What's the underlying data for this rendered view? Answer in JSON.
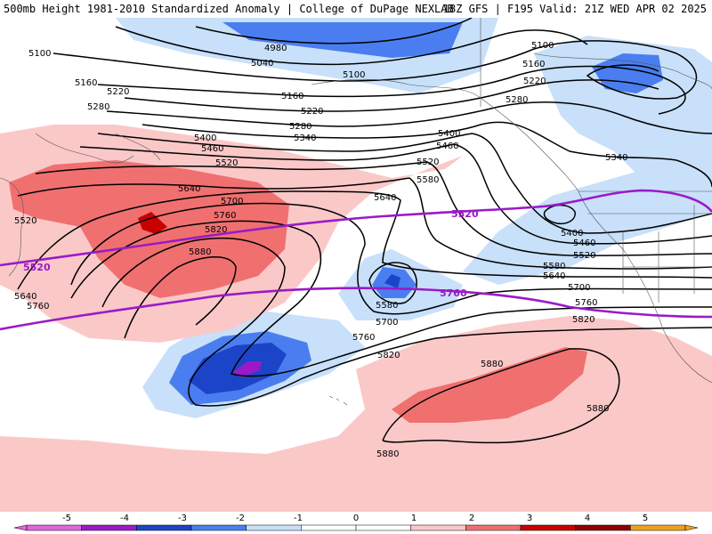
{
  "header": {
    "title": "500mb Height 1981-2010 Standardized Anomaly | College of DuPage NEXLAB",
    "valid": "18Z GFS | F195 Valid: 21Z WED APR 02 2025"
  },
  "colors": {
    "neg5": "#e066e0",
    "neg4": "#9a1ac8",
    "neg3": "#1c44c8",
    "neg2": "#4a7ef0",
    "neg1": "#c8e0fa",
    "zero": "#ffffff",
    "pos1": "#fbc8c8",
    "pos2": "#f07070",
    "pos3": "#c80000",
    "pos4": "#8c0000",
    "pos5": "#f0a020",
    "contour": "#000000",
    "highlight": "#9a1ac8"
  },
  "colorbar": {
    "ticks": [
      "-5",
      "-4",
      "-3",
      "-2",
      "-1",
      "0",
      "1",
      "2",
      "3",
      "4",
      "5"
    ]
  },
  "contour_labels": {
    "c4980": "4980",
    "c5040": "5040",
    "c5100": "5100",
    "c5160": "5160",
    "c5220": "5220",
    "c5280": "5280",
    "c5340": "5340",
    "c5400": "5400",
    "c5460": "5460",
    "c5520": "5520",
    "c5580": "5580",
    "c5640": "5640",
    "c5700": "5700",
    "c5760": "5760",
    "c5820": "5820",
    "c5880": "5880"
  },
  "highlight_labels": {
    "h5520": "5520",
    "h5760": "5760"
  }
}
